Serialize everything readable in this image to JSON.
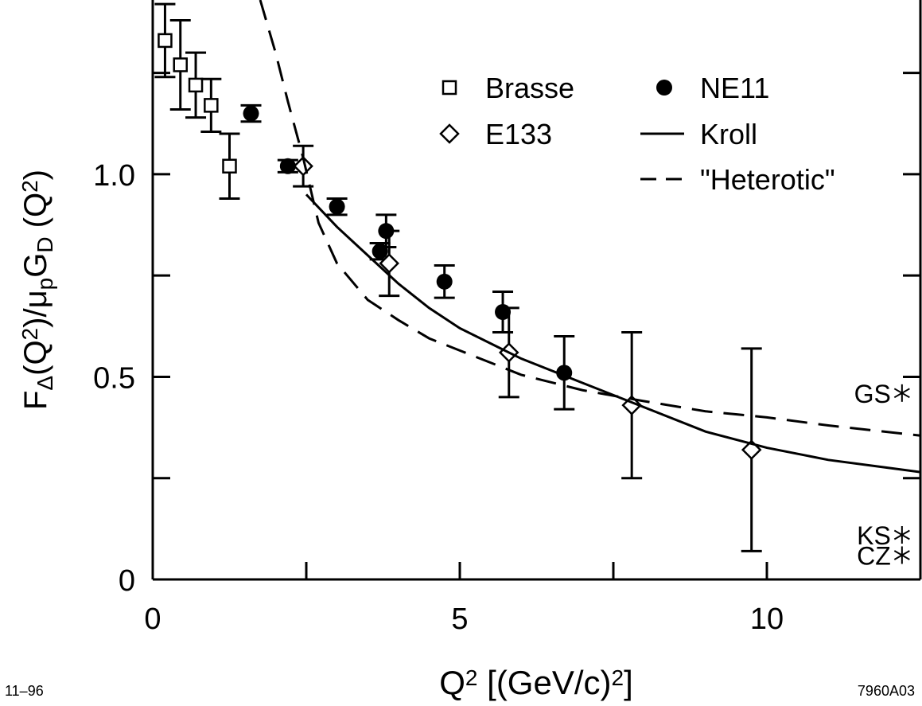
{
  "chart_data": {
    "type": "scatter",
    "ylabel": [
      {
        "text": "F"
      },
      {
        "text": "Δ",
        "shift": "sub"
      },
      {
        "text": "(Q"
      },
      {
        "text": "2",
        "shift": "sup"
      },
      {
        "text": ")/μ"
      },
      {
        "text": "p",
        "shift": "sub"
      },
      {
        "text": "G"
      },
      {
        "text": "D",
        "shift": "sub"
      },
      {
        "text": " (Q"
      },
      {
        "text": "2",
        "shift": "sup"
      },
      {
        "text": ")"
      }
    ],
    "xlabel": [
      {
        "text": "Q"
      },
      {
        "text": "2",
        "shift": "sup"
      },
      {
        "text": "   [(GeV/c)"
      },
      {
        "text": "2",
        "shift": "sup"
      },
      {
        "text": "]"
      }
    ],
    "xlim": [
      0,
      12.5
    ],
    "xticks": [
      0,
      5,
      10
    ],
    "xminor_ticks": [
      2.5,
      7.5
    ],
    "ylim": [
      0,
      1.43
    ],
    "yticks": [
      0,
      0.5,
      {
        "value": 1,
        "label": "1.0"
      }
    ],
    "yminor_ticks": [
      0.25,
      0.75,
      1.25
    ],
    "series": [
      {
        "name": "Brasse",
        "marker": "square",
        "color": "#000000",
        "x": [
          0.2,
          0.45,
          0.7,
          0.95,
          1.25
        ],
        "values": [
          1.33,
          1.27,
          1.22,
          1.17,
          1.02
        ],
        "errors": [
          0.09,
          0.11,
          0.08,
          0.065,
          0.08
        ]
      },
      {
        "name": "NE11",
        "marker": "circle",
        "color": "#000000",
        "x": [
          1.6,
          2.2,
          3.0,
          3.7,
          3.8,
          4.75,
          5.7,
          6.7
        ],
        "values": [
          1.15,
          1.02,
          0.92,
          0.81,
          0.86,
          0.735,
          0.66,
          0.51
        ],
        "errors": [
          0.02,
          0.015,
          0.02,
          0.02,
          0.04,
          0.04,
          0.05,
          0.09
        ]
      },
      {
        "name": "E133",
        "marker": "diamond",
        "color": "#000000",
        "x": [
          2.45,
          3.85,
          5.8,
          7.8,
          9.75
        ],
        "values": [
          1.02,
          0.78,
          0.56,
          0.43,
          0.32
        ],
        "errors": [
          0.05,
          0.08,
          0.11,
          0.18,
          0.25
        ]
      },
      {
        "name": "Kroll",
        "line": "solid",
        "color": "#000000",
        "x": [
          2.5,
          3,
          3.5,
          4,
          4.5,
          5,
          6,
          7,
          8,
          9,
          10,
          11,
          12,
          12.5
        ],
        "values": [
          0.95,
          0.87,
          0.8,
          0.73,
          0.67,
          0.62,
          0.545,
          0.485,
          0.425,
          0.365,
          0.325,
          0.295,
          0.275,
          0.265
        ]
      },
      {
        "name": "\"Heterotic\"",
        "line": "dashed",
        "color": "#000000",
        "x": [
          1.75,
          2.0,
          2.2,
          2.45,
          2.7,
          3,
          3.5,
          4,
          4.5,
          5,
          6,
          7,
          8,
          9,
          10,
          11,
          12.5
        ],
        "values": [
          1.43,
          1.3,
          1.18,
          1.04,
          0.88,
          0.78,
          0.69,
          0.64,
          0.595,
          0.565,
          0.505,
          0.467,
          0.44,
          0.415,
          0.4,
          0.38,
          0.355
        ]
      }
    ],
    "predictions": [
      {
        "label": "GS",
        "x": 12.2,
        "value": 0.46
      },
      {
        "label": "KS",
        "x": 12.2,
        "value": 0.11
      },
      {
        "label": "CZ",
        "x": 12.2,
        "value": 0.06
      }
    ]
  },
  "footer": {
    "left": "11–96",
    "right": "7960A03"
  }
}
